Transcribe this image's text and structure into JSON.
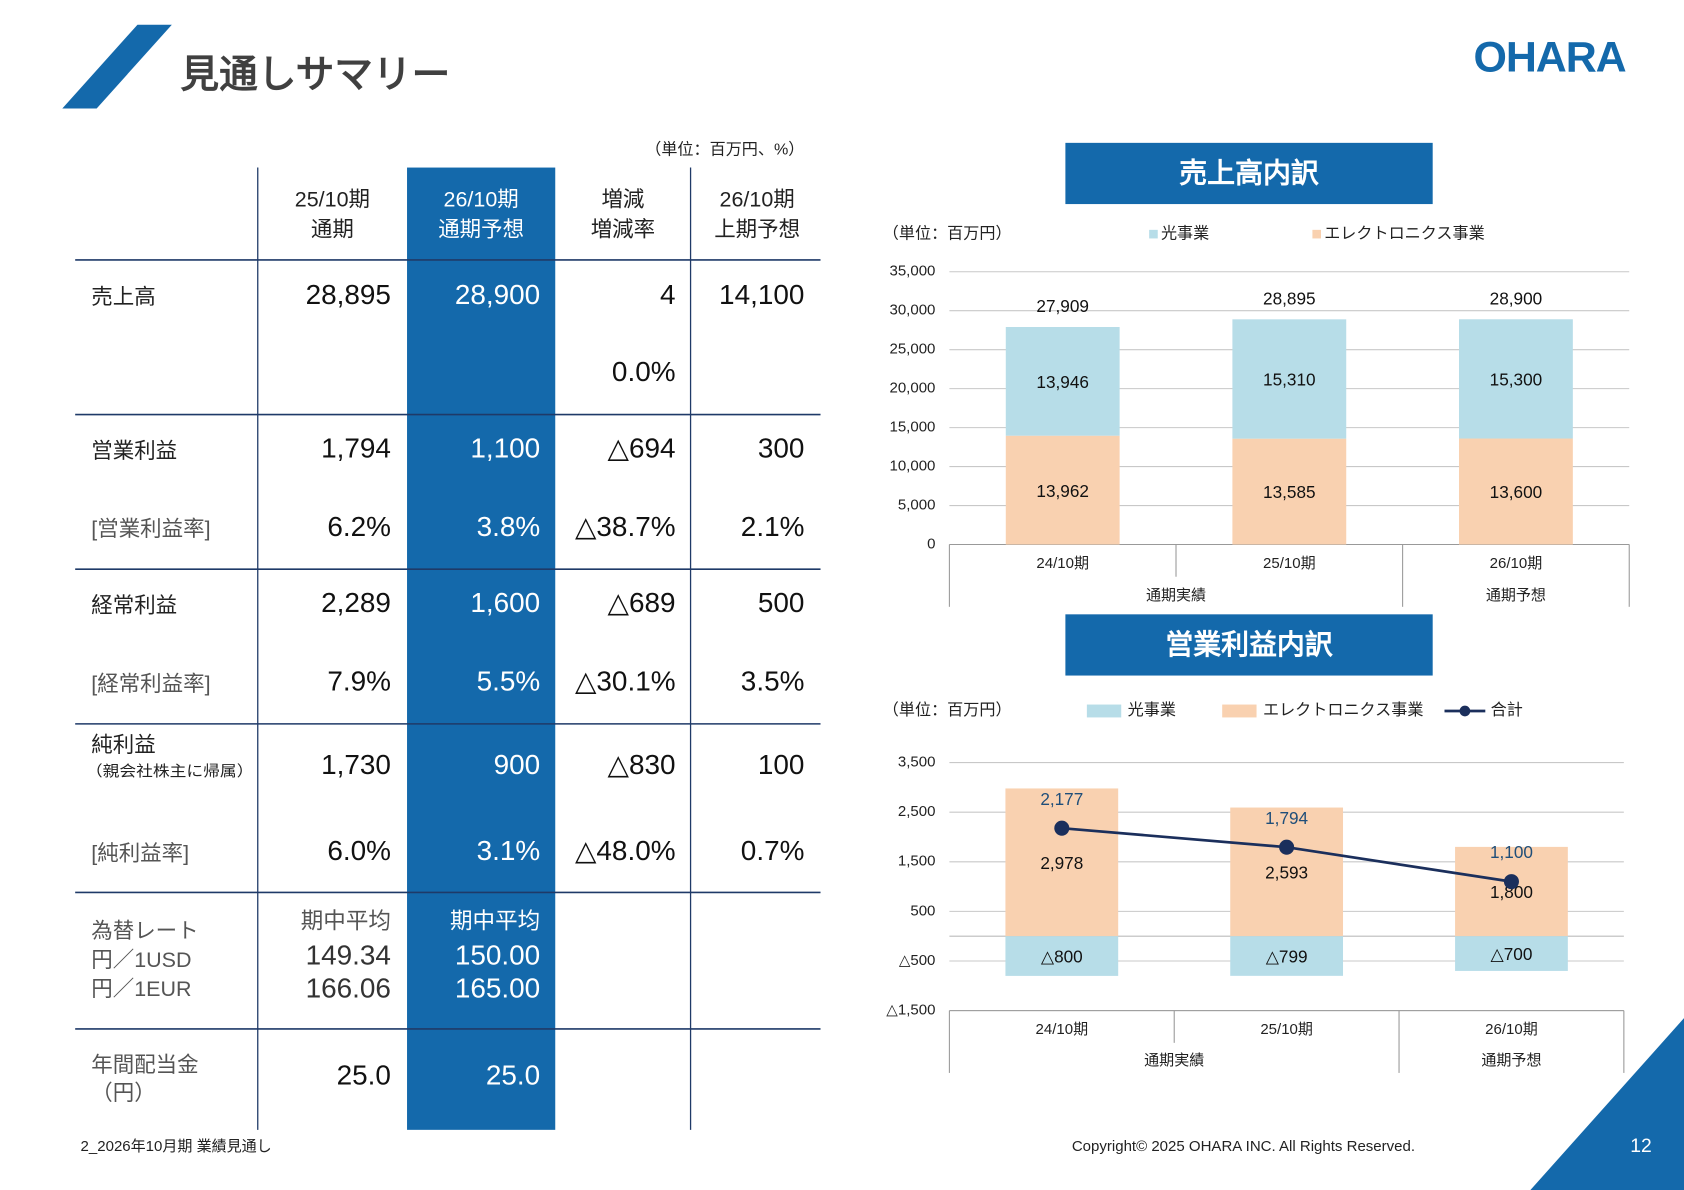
{
  "header": {
    "title": "見通しサマリー",
    "logo": "OHARA"
  },
  "table": {
    "unit": "（単位：百万円、%）",
    "columns": [
      [
        "25/10期",
        "通期"
      ],
      [
        "26/10期",
        "通期予想"
      ],
      [
        "増減",
        "増減率"
      ],
      [
        "26/10期",
        "上期予想"
      ]
    ],
    "blocks": [
      {
        "rows": [
          {
            "label": "売上高",
            "cells": [
              "28,895",
              "28,900",
              "4",
              "14,100"
            ]
          },
          {
            "label": null,
            "cells": [
              null,
              null,
              "0.0%",
              null
            ]
          }
        ]
      },
      {
        "rows": [
          {
            "label": "営業利益",
            "cells": [
              "1,794",
              "1,100",
              "△694",
              "300"
            ]
          },
          {
            "label": "[営業利益率]",
            "cells": [
              "6.2%",
              "3.8%",
              "△38.7%",
              "2.1%"
            ]
          }
        ]
      },
      {
        "rows": [
          {
            "label": "経常利益",
            "cells": [
              "2,289",
              "1,600",
              "△689",
              "500"
            ]
          },
          {
            "label": "[経常利益率]",
            "cells": [
              "7.9%",
              "5.5%",
              "△30.1%",
              "3.5%"
            ]
          }
        ]
      },
      {
        "rows": [
          {
            "label": "純利益",
            "note": "（親会社株主に帰属）",
            "cells": [
              "1,730",
              "900",
              "△830",
              "100"
            ]
          },
          {
            "label": "[純利益率]",
            "cells": [
              "6.0%",
              "3.1%",
              "△48.0%",
              "0.7%"
            ]
          }
        ]
      },
      {
        "rows": [
          {
            "label": [
              "為替レート",
              "円／1USD",
              "円／1EUR"
            ],
            "cells": [
              [
                "期中平均",
                "149.34",
                "166.06"
              ],
              [
                "期中平均",
                "150.00",
                "165.00"
              ],
              null,
              null
            ]
          }
        ]
      },
      {
        "rows": [
          {
            "label": [
              "年間配当金",
              "（円）"
            ],
            "cells": [
              "25.0",
              "25.0",
              null,
              null
            ]
          }
        ]
      }
    ]
  },
  "chart_data": [
    {
      "type": "bar",
      "title": "売上高内訳",
      "unit": "（単位：百万円）",
      "categories": [
        "24/10期",
        "25/10期",
        "26/10期"
      ],
      "groups": [
        {
          "label": "通期実績",
          "categories": [
            "24/10期",
            "25/10期"
          ]
        },
        {
          "label": "通期予想",
          "categories": [
            "26/10期"
          ]
        }
      ],
      "series": [
        {
          "name": "光事業",
          "color": "#b7dde8",
          "values": [
            13946,
            15310,
            15300
          ],
          "value_labels": [
            "13,946",
            "15,310",
            "15,300"
          ]
        },
        {
          "name": "エレクトロニクス事業",
          "color": "#f9d1b0",
          "values": [
            13962,
            13585,
            13600
          ],
          "value_labels": [
            "13,962",
            "13,585",
            "13,600"
          ]
        }
      ],
      "totals": [
        27909,
        28895,
        28900
      ],
      "total_labels": [
        "27,909",
        "28,895",
        "28,900"
      ],
      "ylim": [
        0,
        35000
      ],
      "yticks": [
        0,
        {
          "value": 5000,
          "label": "5,000"
        },
        {
          "value": 10000,
          "label": "10,000"
        },
        {
          "value": 15000,
          "label": "15,000"
        },
        {
          "value": 20000,
          "label": "20,000"
        },
        {
          "value": 25000,
          "label": "25,000"
        },
        {
          "value": 30000,
          "label": "30,000"
        },
        {
          "value": 35000,
          "label": "35,000"
        }
      ],
      "grid": true
    },
    {
      "type": "bar",
      "title": "営業利益内訳",
      "unit": "（単位：百万円）",
      "categories": [
        "24/10期",
        "25/10期",
        "26/10期"
      ],
      "groups": [
        {
          "label": "通期実績",
          "categories": [
            "24/10期",
            "25/10期"
          ]
        },
        {
          "label": "通期予想",
          "categories": [
            "26/10期"
          ]
        }
      ],
      "series": [
        {
          "name": "光事業",
          "color": "#b7dde8",
          "values": [
            -800,
            -799,
            -700
          ],
          "value_labels": [
            "△800",
            "△799",
            "△700"
          ]
        },
        {
          "name": "エレクトロニクス事業",
          "color": "#f9d1b0",
          "values": [
            2978,
            2593,
            1800
          ],
          "value_labels": [
            "2,978",
            "2,593",
            "1,800"
          ]
        },
        {
          "name": "合計",
          "type": "line",
          "color": "#1b2f5c",
          "values": [
            2177,
            1794,
            1100
          ],
          "value_labels": [
            "2,177",
            "1,794",
            "1,100"
          ]
        }
      ],
      "ylim": [
        -1500,
        3500
      ],
      "yticks": [
        {
          "value": -1500,
          "label": "△1,500"
        },
        {
          "value": -500,
          "label": "△500"
        },
        500,
        {
          "value": 1500,
          "label": "1,500"
        },
        {
          "value": 2500,
          "label": "2,500"
        },
        {
          "value": 3500,
          "label": "3,500"
        }
      ],
      "grid": true
    }
  ],
  "footer": {
    "section": "2_2026年10月期 業績見通し",
    "copyright": "Copyright© 2025 OHARA INC. All Rights Reserved.",
    "page": "12"
  }
}
